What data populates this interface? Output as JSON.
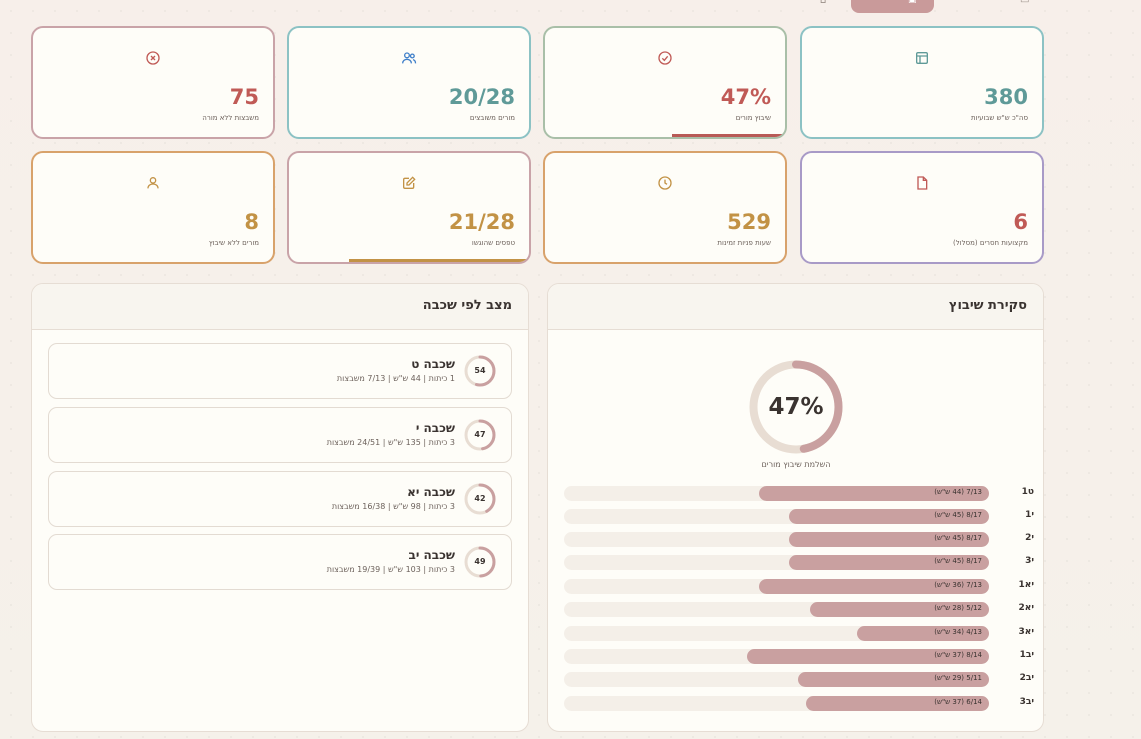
{
  "colors": {
    "rose": "#c2a1a1",
    "teal": "#8cc2c4",
    "sage": "#a9bfa8",
    "sand": "#d8a26b",
    "lavender": "#a89ac7",
    "red_value": "#c05a56",
    "teal_value": "#5f9a98",
    "gold_value": "#c29245",
    "progress_fill": "#c9a0a0"
  },
  "kpis": [
    {
      "value": "75",
      "label": "משבצות ללא מורה",
      "icon": "x-circle-icon"
    },
    {
      "value": "20/28",
      "label": "מורים משובצים",
      "icon": "users-icon"
    },
    {
      "value": "47%",
      "label": "שיבוץ מורים",
      "icon": "check-circle-icon",
      "progress": 0.47
    },
    {
      "value": "380",
      "label": "סה\"כ ש\"ש שבועיות",
      "icon": "layout-icon"
    },
    {
      "value": "8",
      "label": "מורים ללא שיבוץ",
      "icon": "user-icon"
    },
    {
      "value": "21/28",
      "label": "טפסים שהוגשו",
      "icon": "edit-icon",
      "progress": 0.75
    },
    {
      "value": "529",
      "label": "שעות פניות זמינות",
      "icon": "clock-icon"
    },
    {
      "value": "6",
      "label": "מקצועות חסרים (מסלול)",
      "icon": "file-icon"
    }
  ],
  "grade_panel": {
    "title": "מצב לפי שכבה",
    "grades": [
      {
        "name": "שכבה ט",
        "sub": "1 כיתות | 44 ש\"ש | 7/13 משבצות",
        "ring_value": "54",
        "ring_fraction": 0.54
      },
      {
        "name": "שכבה י",
        "sub": "3 כיתות | 135 ש\"ש | 24/51 משבצות",
        "ring_value": "47",
        "ring_fraction": 0.47
      },
      {
        "name": "שכבה יא",
        "sub": "3 כיתות | 98 ש\"ש | 16/38 משבצות",
        "ring_value": "42",
        "ring_fraction": 0.42
      },
      {
        "name": "שכבה יב",
        "sub": "3 כיתות | 103 ש\"ש | 19/39 משבצות",
        "ring_value": "49",
        "ring_fraction": 0.49
      }
    ]
  },
  "overview_panel": {
    "title": "סקירת שיבוץ",
    "donut_value": "47%",
    "donut_fraction": 0.47,
    "donut_caption": "השלמת שיבוץ מורים",
    "bars": [
      {
        "label": "ט1",
        "text": "7/13 (44 ש\"ש)",
        "fraction": 0.54
      },
      {
        "label": "י1",
        "text": "8/17 (45 ש\"ש)",
        "fraction": 0.47
      },
      {
        "label": "י2",
        "text": "8/17 (45 ש\"ש)",
        "fraction": 0.47
      },
      {
        "label": "י3",
        "text": "8/17 (45 ש\"ש)",
        "fraction": 0.47
      },
      {
        "label": "יא1",
        "text": "7/13 (36 ש\"ש)",
        "fraction": 0.54
      },
      {
        "label": "יא2",
        "text": "5/12 (28 ש\"ש)",
        "fraction": 0.42
      },
      {
        "label": "יא3",
        "text": "4/13 (34 ש\"ש)",
        "fraction": 0.31
      },
      {
        "label": "יב1",
        "text": "8/14 (37 ש\"ש)",
        "fraction": 0.57
      },
      {
        "label": "יב2",
        "text": "5/11 (29 ש\"ש)",
        "fraction": 0.45
      },
      {
        "label": "יב3",
        "text": "6/14 (37 ש\"ש)",
        "fraction": 0.43
      }
    ]
  }
}
